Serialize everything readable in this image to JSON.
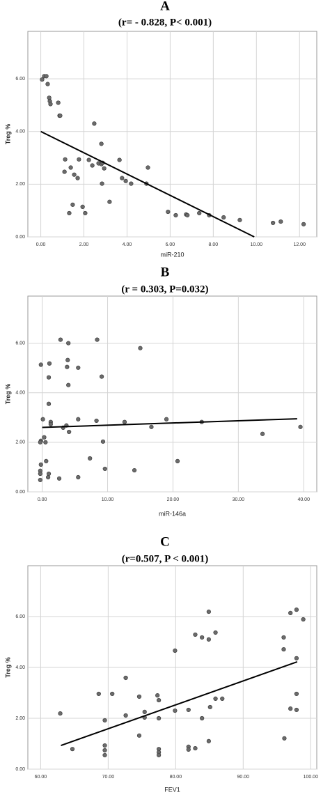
{
  "chart_data": [
    {
      "type": "scatter",
      "title": "A",
      "subtitle": "(r= - 0.828, P< 0.001)",
      "x_label": "miR-210",
      "y_label": "Treg %",
      "xlim": [
        -0.6,
        12.8
      ],
      "ylim": [
        0,
        7.8
      ],
      "grid": true,
      "color": "#6b6b6b",
      "xticks": [
        {
          "value": 0,
          "label": "0.00"
        },
        {
          "value": 2,
          "label": "2.00"
        },
        {
          "value": 4,
          "label": "4.00"
        },
        {
          "value": 6,
          "label": "6.00"
        },
        {
          "value": 8,
          "label": "8.00"
        },
        {
          "value": 10,
          "label": "10.00"
        },
        {
          "value": 12,
          "label": "12.00"
        }
      ],
      "yticks": [
        {
          "value": 0,
          "label": "0.00"
        },
        {
          "value": 2,
          "label": "2.00"
        },
        {
          "value": 4,
          "label": "4.00"
        },
        {
          "value": 6,
          "label": "6.00"
        }
      ],
      "x": [
        0.06,
        0.16,
        0.26,
        0.32,
        0.39,
        0.42,
        0.45,
        0.81,
        0.87,
        0.9,
        2.48,
        2.81,
        1.13,
        1.77,
        2.23,
        1.1,
        1.39,
        1.55,
        1.71,
        2.39,
        2.68,
        2.81,
        2.87,
        2.94,
        2.84,
        3.65,
        3.77,
        3.94,
        4.19,
        4.97,
        4.9,
        1.48,
        1.94,
        2.06,
        1.32,
        3.19,
        5.9,
        6.26,
        6.74,
        6.8,
        7.35,
        7.81,
        8.48,
        9.23,
        10.77,
        11.13,
        12.19
      ],
      "values": [
        5.97,
        6.1,
        6.1,
        5.8,
        5.28,
        5.15,
        5.04,
        5.09,
        4.6,
        4.6,
        4.3,
        3.53,
        2.94,
        2.94,
        2.92,
        2.47,
        2.63,
        2.36,
        2.23,
        2.71,
        2.79,
        2.76,
        2.81,
        2.6,
        2.02,
        2.92,
        2.23,
        2.12,
        2.02,
        2.63,
        2.02,
        1.22,
        1.14,
        0.9,
        0.9,
        1.33,
        0.95,
        0.82,
        0.85,
        0.82,
        0.9,
        0.82,
        0.74,
        0.64,
        0.53,
        0.58,
        0.48
      ],
      "trendline": {
        "x": [
          0,
          9.9
        ],
        "y": [
          4.0,
          0
        ]
      }
    },
    {
      "type": "scatter",
      "title": "B",
      "subtitle": "(r = 0.303, P=0.032)",
      "x_label": "miR-146a",
      "y_label": "Treg %",
      "xlim": [
        -2.2,
        42
      ],
      "ylim": [
        0,
        7.9
      ],
      "grid": true,
      "color": "#6b6b6b",
      "xticks": [
        {
          "value": 0,
          "label": "0.00"
        },
        {
          "value": 10,
          "label": "10.00"
        },
        {
          "value": 20,
          "label": "20.00"
        },
        {
          "value": 30,
          "label": "30.00"
        },
        {
          "value": 40,
          "label": "40.00"
        }
      ],
      "yticks": [
        {
          "value": 0,
          "label": "0.00"
        },
        {
          "value": 2,
          "label": "2.00"
        },
        {
          "value": 4,
          "label": "4.00"
        },
        {
          "value": 6,
          "label": "6.00"
        }
      ],
      "x": [
        -0.2,
        -0.2,
        -0.3,
        -0.2,
        -0.3,
        -0.3,
        -0.3,
        0.1,
        0.3,
        0.5,
        0.6,
        0.9,
        1.0,
        1.0,
        1.1,
        1.0,
        1.3,
        1.3,
        2.8,
        2.6,
        3.2,
        3.7,
        3.8,
        3.9,
        4.0,
        4.0,
        4.1,
        5.5,
        5.5,
        5.5,
        7.3,
        8.3,
        8.4,
        9.1,
        9.3,
        9.6,
        12.6,
        14.1,
        15.0,
        16.7,
        19.0,
        20.7,
        24.4,
        33.7,
        39.5
      ],
      "values": [
        5.13,
        2.06,
        2.0,
        1.1,
        0.85,
        0.73,
        0.48,
        2.93,
        2.2,
        2.0,
        1.24,
        0.59,
        0.73,
        4.62,
        5.18,
        3.55,
        2.82,
        2.73,
        6.14,
        0.54,
        2.59,
        2.68,
        5.04,
        5.32,
        6.0,
        4.31,
        2.42,
        5.01,
        2.93,
        0.59,
        1.35,
        2.87,
        6.14,
        4.65,
        2.03,
        0.93,
        2.82,
        0.87,
        5.8,
        2.62,
        2.93,
        1.24,
        2.82,
        2.34,
        2.62
      ],
      "trendline": {
        "x": [
          0,
          39
        ],
        "y": [
          2.6,
          2.95
        ]
      }
    },
    {
      "type": "scatter",
      "title": "C",
      "subtitle": "(r=0.507, P < 0.001)",
      "x_label": "FEV1",
      "y_label": "Treg %",
      "xlim": [
        58.1,
        100.9
      ],
      "ylim": [
        0,
        8.0
      ],
      "grid": true,
      "color": "#6b6b6b",
      "xticks": [
        {
          "value": 60,
          "label": "60.00"
        },
        {
          "value": 70,
          "label": "70.00"
        },
        {
          "value": 80,
          "label": "80.00"
        },
        {
          "value": 90,
          "label": "90.00"
        },
        {
          "value": 100,
          "label": "100.00"
        }
      ],
      "yticks": [
        {
          "value": 0,
          "label": "0.00"
        },
        {
          "value": 2,
          "label": "2.00"
        },
        {
          "value": 4,
          "label": "4.00"
        },
        {
          "value": 6,
          "label": "6.00"
        }
      ],
      "x": [
        62.9,
        64.7,
        68.6,
        69.5,
        69.5,
        69.5,
        69.5,
        70.6,
        72.6,
        72.6,
        74.6,
        74.6,
        75.4,
        75.4,
        77.3,
        77.5,
        77.5,
        77.5,
        77.5,
        77.5,
        79.9,
        79.9,
        81.9,
        81.9,
        81.9,
        82.9,
        82.9,
        83.9,
        83.9,
        84.9,
        84.9,
        84.9,
        85.1,
        85.9,
        85.9,
        86.9,
        96.1,
        96.0,
        96.0,
        97.0,
        97.0,
        97.9,
        97.9,
        97.9,
        97.9,
        98.9
      ],
      "values": [
        2.19,
        0.79,
        2.96,
        1.92,
        0.93,
        0.74,
        0.55,
        2.96,
        3.59,
        2.11,
        2.85,
        1.32,
        2.25,
        2.03,
        2.9,
        2.71,
        2.0,
        0.79,
        0.66,
        0.55,
        4.66,
        2.3,
        2.33,
        0.88,
        0.77,
        0.82,
        5.29,
        5.18,
        2.0,
        5.1,
        1.1,
        6.19,
        2.44,
        2.77,
        5.37,
        2.77,
        1.21,
        4.71,
        5.18,
        6.14,
        2.38,
        6.27,
        2.33,
        2.96,
        4.36,
        5.89
      ],
      "trendline": {
        "x": [
          63,
          98
        ],
        "y": [
          0.93,
          4.22
        ]
      }
    }
  ]
}
